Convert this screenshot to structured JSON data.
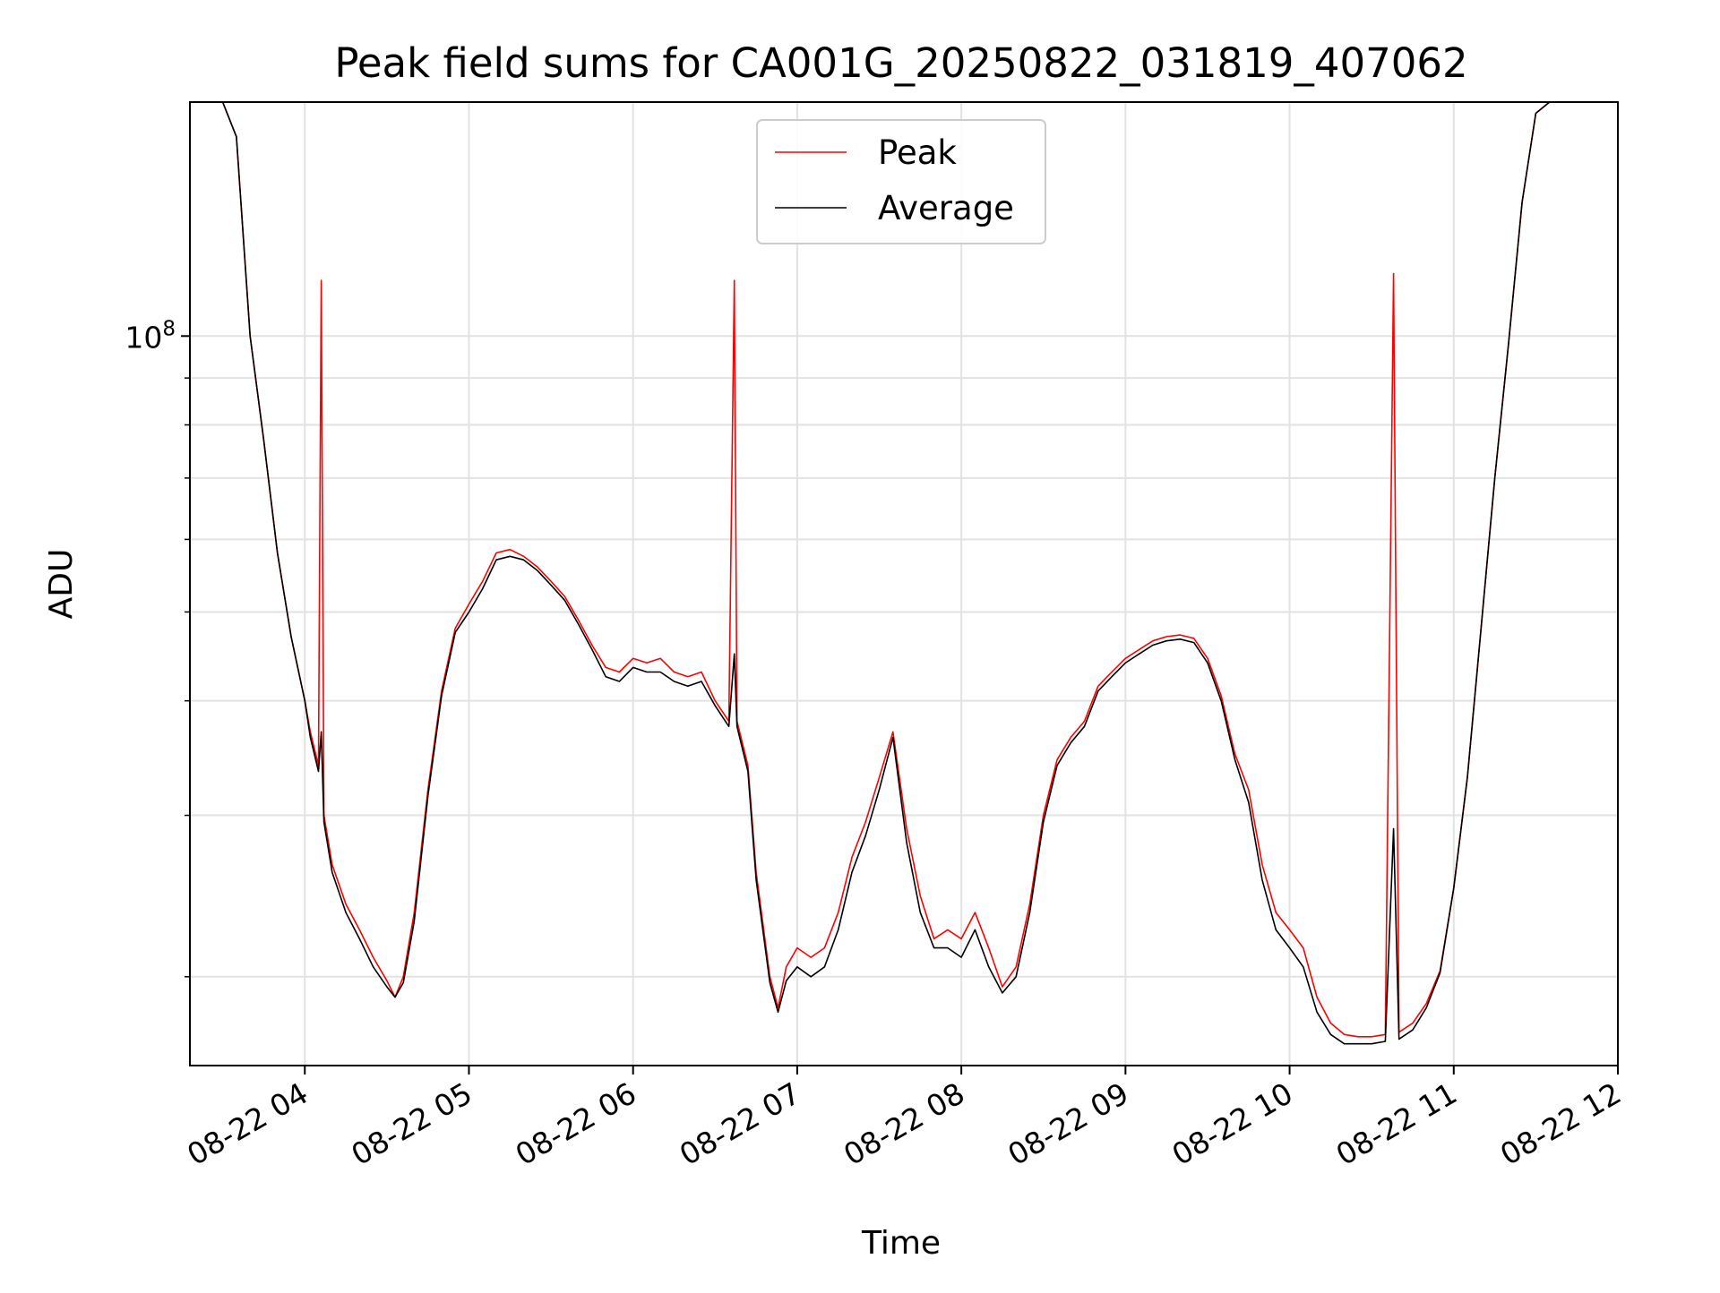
{
  "chart_data": {
    "type": "line",
    "title": "Peak field sums for CA001G_20250822_031819_407062",
    "xlabel": "Time",
    "ylabel": "ADU",
    "yscale": "log",
    "grid": true,
    "legend_position": "upper center",
    "x_ticks": [
      "08-22 04",
      "08-22 05",
      "08-22 06",
      "08-22 07",
      "08-22 08",
      "08-22 09",
      "08-22 10",
      "08-22 11",
      "08-22 12"
    ],
    "x_range": [
      "2025-08-22 03:18",
      "2025-08-22 12:00"
    ],
    "y_range": [
      16000000,
      180000000
    ],
    "y_major_tick_label": "10^8",
    "y_minor_ticks": [
      20000000,
      30000000,
      40000000,
      50000000,
      60000000,
      70000000,
      80000000,
      90000000
    ],
    "series": [
      {
        "name": "Peak",
        "color": "#ff0000",
        "points": [
          [
            "03:30",
            180000000
          ],
          [
            "03:35",
            165000000
          ],
          [
            "03:40",
            100000000
          ],
          [
            "03:45",
            77000000
          ],
          [
            "03:50",
            58000000
          ],
          [
            "03:55",
            47000000
          ],
          [
            "04:00",
            40000000
          ],
          [
            "04:02",
            37000000
          ],
          [
            "04:05",
            34000000
          ],
          [
            "04:06",
            115000000
          ],
          [
            "04:07",
            30000000
          ],
          [
            "04:10",
            26500000
          ],
          [
            "04:15",
            24000000
          ],
          [
            "04:20",
            22500000
          ],
          [
            "04:25",
            21000000
          ],
          [
            "04:30",
            19800000
          ],
          [
            "04:33",
            19000000
          ],
          [
            "04:36",
            20000000
          ],
          [
            "04:40",
            23500000
          ],
          [
            "04:45",
            32000000
          ],
          [
            "04:50",
            41000000
          ],
          [
            "04:55",
            48000000
          ],
          [
            "05:00",
            51000000
          ],
          [
            "05:05",
            54000000
          ],
          [
            "05:10",
            58000000
          ],
          [
            "05:15",
            58500000
          ],
          [
            "05:20",
            57500000
          ],
          [
            "05:25",
            56000000
          ],
          [
            "05:30",
            54000000
          ],
          [
            "05:35",
            52000000
          ],
          [
            "05:40",
            49000000
          ],
          [
            "05:45",
            46000000
          ],
          [
            "05:50",
            43500000
          ],
          [
            "05:55",
            43000000
          ],
          [
            "06:00",
            44500000
          ],
          [
            "06:05",
            44000000
          ],
          [
            "06:10",
            44500000
          ],
          [
            "06:15",
            43000000
          ],
          [
            "06:20",
            42500000
          ],
          [
            "06:25",
            43000000
          ],
          [
            "06:30",
            40000000
          ],
          [
            "06:35",
            38000000
          ],
          [
            "06:37",
            115000000
          ],
          [
            "06:38",
            38000000
          ],
          [
            "06:42",
            34000000
          ],
          [
            "06:45",
            26000000
          ],
          [
            "06:50",
            20000000
          ],
          [
            "06:53",
            18500000
          ],
          [
            "06:56",
            20500000
          ],
          [
            "07:00",
            21500000
          ],
          [
            "07:05",
            21000000
          ],
          [
            "07:10",
            21500000
          ],
          [
            "07:15",
            23500000
          ],
          [
            "07:20",
            27000000
          ],
          [
            "07:25",
            29500000
          ],
          [
            "07:30",
            33000000
          ],
          [
            "07:35",
            37000000
          ],
          [
            "07:40",
            29000000
          ],
          [
            "07:45",
            24500000
          ],
          [
            "07:50",
            22000000
          ],
          [
            "07:55",
            22500000
          ],
          [
            "08:00",
            22000000
          ],
          [
            "08:05",
            23500000
          ],
          [
            "08:10",
            21500000
          ],
          [
            "08:15",
            19500000
          ],
          [
            "08:20",
            20500000
          ],
          [
            "08:25",
            24000000
          ],
          [
            "08:30",
            30000000
          ],
          [
            "08:35",
            34500000
          ],
          [
            "08:40",
            36500000
          ],
          [
            "08:45",
            38000000
          ],
          [
            "08:50",
            41500000
          ],
          [
            "08:55",
            43000000
          ],
          [
            "09:00",
            44500000
          ],
          [
            "09:05",
            45500000
          ],
          [
            "09:10",
            46500000
          ],
          [
            "09:15",
            47000000
          ],
          [
            "09:20",
            47200000
          ],
          [
            "09:25",
            46800000
          ],
          [
            "09:30",
            44500000
          ],
          [
            "09:35",
            40500000
          ],
          [
            "09:40",
            35000000
          ],
          [
            "09:45",
            32000000
          ],
          [
            "09:50",
            26500000
          ],
          [
            "09:55",
            23500000
          ],
          [
            "10:00",
            22500000
          ],
          [
            "10:05",
            21500000
          ],
          [
            "10:10",
            19000000
          ],
          [
            "10:15",
            17800000
          ],
          [
            "10:20",
            17300000
          ],
          [
            "10:25",
            17200000
          ],
          [
            "10:30",
            17200000
          ],
          [
            "10:35",
            17300000
          ],
          [
            "10:38",
            117000000
          ],
          [
            "10:40",
            17400000
          ],
          [
            "10:45",
            17800000
          ],
          [
            "10:50",
            18700000
          ],
          [
            "10:55",
            20300000
          ],
          [
            "11:00",
            25000000
          ],
          [
            "11:05",
            33000000
          ],
          [
            "11:10",
            48000000
          ],
          [
            "11:15",
            70000000
          ],
          [
            "11:20",
            98000000
          ],
          [
            "11:25",
            140000000
          ],
          [
            "11:30",
            175000000
          ],
          [
            "11:35",
            180000000
          ]
        ]
      },
      {
        "name": "Average",
        "color": "#000000",
        "points": [
          [
            "03:30",
            180000000
          ],
          [
            "03:35",
            165000000
          ],
          [
            "03:40",
            100000000
          ],
          [
            "03:45",
            77000000
          ],
          [
            "03:50",
            58000000
          ],
          [
            "03:55",
            47000000
          ],
          [
            "04:00",
            40000000
          ],
          [
            "04:02",
            36500000
          ],
          [
            "04:05",
            33500000
          ],
          [
            "04:06",
            37000000
          ],
          [
            "04:07",
            29500000
          ],
          [
            "04:10",
            26000000
          ],
          [
            "04:15",
            23500000
          ],
          [
            "04:20",
            22000000
          ],
          [
            "04:25",
            20500000
          ],
          [
            "04:30",
            19500000
          ],
          [
            "04:33",
            19000000
          ],
          [
            "04:36",
            19700000
          ],
          [
            "04:40",
            23000000
          ],
          [
            "04:45",
            31500000
          ],
          [
            "04:50",
            40500000
          ],
          [
            "04:55",
            47500000
          ],
          [
            "05:00",
            50000000
          ],
          [
            "05:05",
            53000000
          ],
          [
            "05:10",
            57000000
          ],
          [
            "05:15",
            57500000
          ],
          [
            "05:20",
            57000000
          ],
          [
            "05:25",
            55500000
          ],
          [
            "05:30",
            53500000
          ],
          [
            "05:35",
            51500000
          ],
          [
            "05:40",
            48500000
          ],
          [
            "05:45",
            45500000
          ],
          [
            "05:50",
            42500000
          ],
          [
            "05:55",
            42000000
          ],
          [
            "06:00",
            43500000
          ],
          [
            "06:05",
            43000000
          ],
          [
            "06:10",
            43000000
          ],
          [
            "06:15",
            42000000
          ],
          [
            "06:20",
            41500000
          ],
          [
            "06:25",
            42000000
          ],
          [
            "06:30",
            39500000
          ],
          [
            "06:35",
            37500000
          ],
          [
            "06:37",
            45000000
          ],
          [
            "06:38",
            37500000
          ],
          [
            "06:42",
            33500000
          ],
          [
            "06:45",
            25500000
          ],
          [
            "06:50",
            19700000
          ],
          [
            "06:53",
            18300000
          ],
          [
            "06:56",
            19800000
          ],
          [
            "07:00",
            20500000
          ],
          [
            "07:05",
            20000000
          ],
          [
            "07:10",
            20500000
          ],
          [
            "07:15",
            22500000
          ],
          [
            "07:20",
            26000000
          ],
          [
            "07:25",
            28500000
          ],
          [
            "07:30",
            32000000
          ],
          [
            "07:35",
            36500000
          ],
          [
            "07:40",
            28000000
          ],
          [
            "07:45",
            23500000
          ],
          [
            "07:50",
            21500000
          ],
          [
            "07:55",
            21500000
          ],
          [
            "08:00",
            21000000
          ],
          [
            "08:05",
            22500000
          ],
          [
            "08:10",
            20500000
          ],
          [
            "08:15",
            19200000
          ],
          [
            "08:20",
            20000000
          ],
          [
            "08:25",
            23500000
          ],
          [
            "08:30",
            29500000
          ],
          [
            "08:35",
            34000000
          ],
          [
            "08:40",
            36000000
          ],
          [
            "08:45",
            37500000
          ],
          [
            "08:50",
            41000000
          ],
          [
            "08:55",
            42500000
          ],
          [
            "09:00",
            44000000
          ],
          [
            "09:05",
            45000000
          ],
          [
            "09:10",
            46000000
          ],
          [
            "09:15",
            46500000
          ],
          [
            "09:20",
            46700000
          ],
          [
            "09:25",
            46300000
          ],
          [
            "09:30",
            44000000
          ],
          [
            "09:35",
            40000000
          ],
          [
            "09:40",
            34500000
          ],
          [
            "09:45",
            31000000
          ],
          [
            "09:50",
            25500000
          ],
          [
            "09:55",
            22500000
          ],
          [
            "10:00",
            21500000
          ],
          [
            "10:05",
            20500000
          ],
          [
            "10:10",
            18300000
          ],
          [
            "10:15",
            17300000
          ],
          [
            "10:20",
            16900000
          ],
          [
            "10:25",
            16900000
          ],
          [
            "10:30",
            16900000
          ],
          [
            "10:35",
            17000000
          ],
          [
            "10:38",
            29000000
          ],
          [
            "10:40",
            17100000
          ],
          [
            "10:45",
            17500000
          ],
          [
            "10:50",
            18500000
          ],
          [
            "10:55",
            20200000
          ],
          [
            "11:00",
            25000000
          ],
          [
            "11:05",
            33000000
          ],
          [
            "11:10",
            48000000
          ],
          [
            "11:15",
            70000000
          ],
          [
            "11:20",
            98000000
          ],
          [
            "11:25",
            140000000
          ],
          [
            "11:30",
            175000000
          ],
          [
            "11:35",
            180000000
          ]
        ]
      }
    ]
  }
}
